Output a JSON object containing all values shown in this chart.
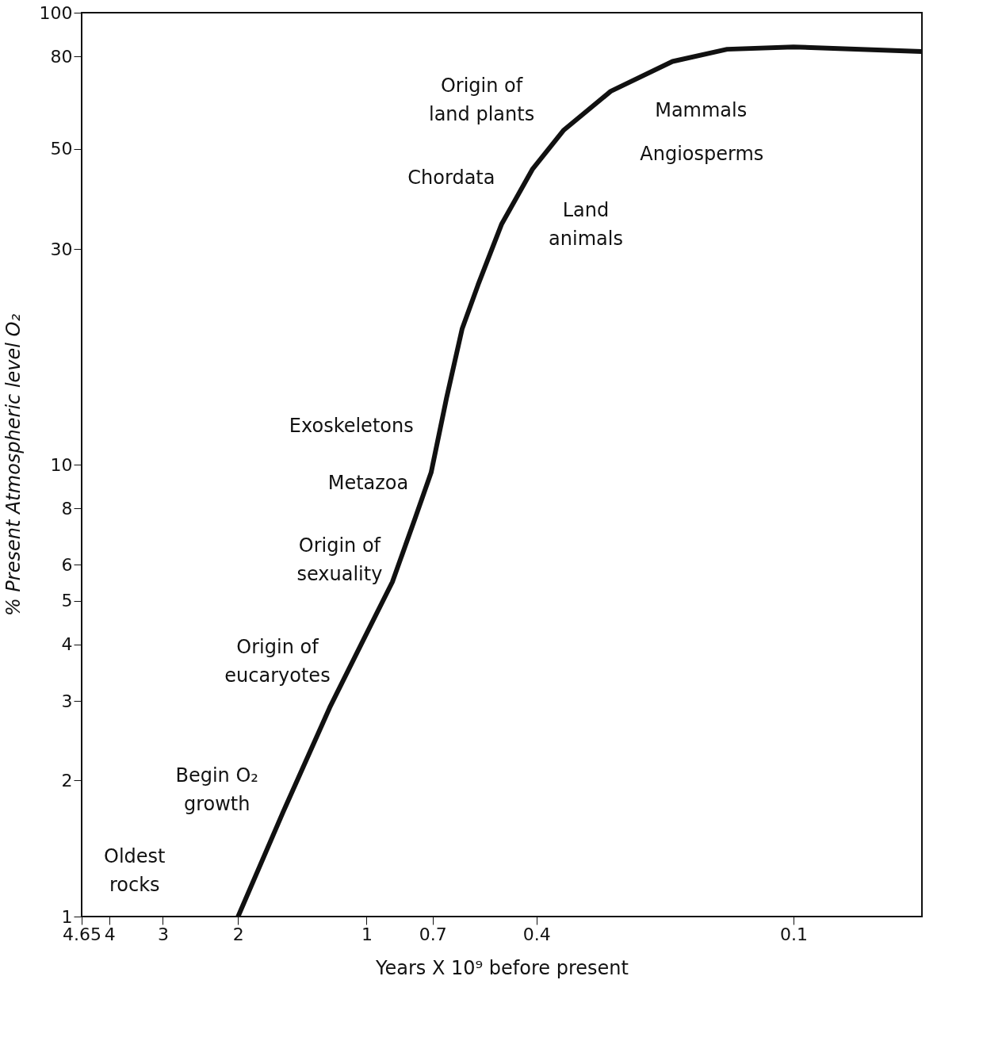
{
  "chart_data": {
    "type": "line",
    "xlabel": "Years X 10⁹ before present",
    "ylabel": "% Present Atmospheric level O₂",
    "log": "xy",
    "grid": false,
    "marker": "none",
    "line_style": "solid",
    "xlim": [
      4.65,
      0.05
    ],
    "xticks": [
      4.65,
      4,
      3,
      2,
      1,
      0.7,
      0.4,
      0.1
    ],
    "ylim": [
      1,
      100
    ],
    "yticks": [
      1,
      2,
      3,
      4,
      5,
      6,
      8,
      10,
      30,
      50,
      80,
      100
    ],
    "series": [
      {
        "color": "#111111",
        "x": [
          2,
          1.57,
          1.22,
          1.03,
          0.87,
          0.77,
          0.706,
          0.65,
          0.597,
          0.548,
          0.483,
          0.409,
          0.345,
          0.268,
          0.192,
          0.143,
          0.1,
          0.05
        ],
        "values": [
          1,
          1.7,
          2.9,
          4.0,
          5.5,
          7.6,
          9.6,
          14,
          20,
          25,
          34,
          45,
          55,
          67,
          78,
          83,
          84,
          82
        ]
      }
    ],
    "annotations": [
      "Origin of\nland plants",
      "Mammals",
      "Angiosperms",
      "Chordata",
      "Land\nanimals",
      "Exoskeletons",
      "Metazoa",
      "Origin of\nsexuality",
      "Origin of\neucaryotes",
      "Begin O₂\ngrowth",
      "Oldest\nrocks"
    ]
  }
}
